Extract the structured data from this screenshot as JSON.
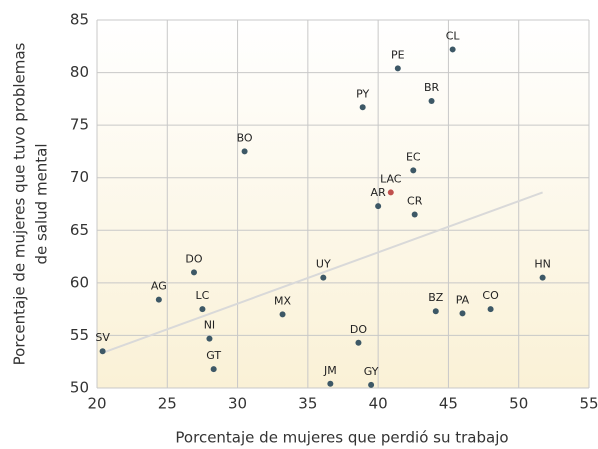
{
  "chart_data": {
    "type": "scatter",
    "x_label": "Porcentaje de mujeres que perdió su trabajo",
    "y_label": [
      "Porcentaje de mujeres que tuvo problemas",
      "de salud mental"
    ],
    "labels": [
      "CL",
      "PE",
      "PY",
      "BR",
      "BO",
      "EC",
      "LAC",
      "AR",
      "CR",
      "DO",
      "UY",
      "HN",
      "AG",
      "LC",
      "MX",
      "BZ",
      "PA",
      "CO",
      "NI",
      "DO",
      "SV",
      "GT",
      "JM",
      "GY"
    ],
    "x": [
      45.3,
      41.4,
      38.9,
      43.8,
      30.5,
      42.5,
      40.9,
      40.0,
      42.6,
      26.9,
      36.1,
      51.7,
      24.4,
      27.5,
      33.2,
      44.1,
      46.0,
      48.0,
      28.0,
      38.6,
      20.4,
      28.3,
      36.6,
      39.5
    ],
    "values": [
      82.2,
      80.4,
      76.7,
      77.3,
      72.5,
      70.7,
      68.6,
      67.3,
      66.5,
      61.0,
      60.5,
      60.5,
      58.4,
      57.5,
      57.0,
      57.3,
      57.1,
      57.5,
      54.7,
      54.3,
      53.5,
      51.8,
      50.4,
      50.3
    ],
    "colors": [
      "#3d5866",
      "#3d5866",
      "#3d5866",
      "#3d5866",
      "#3d5866",
      "#3d5866",
      "#c0504d",
      "#3d5866",
      "#3d5866",
      "#3d5866",
      "#3d5866",
      "#3d5866",
      "#3d5866",
      "#3d5866",
      "#3d5866",
      "#3d5866",
      "#3d5866",
      "#3d5866",
      "#3d5866",
      "#3d5866",
      "#3d5866",
      "#3d5866",
      "#3d5866",
      "#3d5866"
    ],
    "trendline": {
      "x": [
        20.3,
        51.7
      ],
      "y": [
        53.3,
        68.6
      ],
      "color": "#d9d9d9"
    },
    "xlim": [
      20,
      55
    ],
    "xticks": [
      20,
      25,
      30,
      35,
      40,
      45,
      50,
      55
    ],
    "ylim": [
      50,
      85
    ],
    "yticks": [
      50,
      55,
      60,
      65,
      70,
      75,
      80,
      85
    ],
    "grid": true
  }
}
